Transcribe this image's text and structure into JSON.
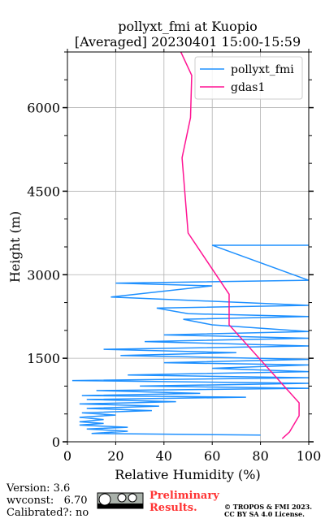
{
  "chart_data": {
    "type": "line",
    "title": "pollyxt_fmi at Kuopio",
    "subtitle": "[Averaged] 20230401 15:00-15:59",
    "x_label": "Relative Humidity (%)",
    "y_label": "Height (m)",
    "xlim": [
      0,
      100
    ],
    "xticks": [
      0,
      20,
      40,
      60,
      80,
      100
    ],
    "ylim": [
      0,
      7000
    ],
    "yticks": [
      0,
      1500,
      3000,
      4500,
      6000
    ],
    "yminorticks": [
      500,
      1000,
      2000,
      2500,
      3500,
      4000,
      5000,
      5500,
      6500,
      7000
    ],
    "grid": true,
    "legend": "upper right",
    "series": [
      {
        "name": "pollyxt_fmi",
        "color": "#1e90ff",
        "heights": [
          120,
          150,
          190,
          230,
          260,
          300,
          330,
          360,
          400,
          440,
          480,
          520,
          560,
          600,
          640,
          680,
          720,
          760,
          800,
          830,
          870,
          920,
          960,
          1000,
          1050,
          1100,
          1150,
          1200,
          1260,
          1320,
          1380,
          1420,
          1480,
          1550,
          1600,
          1660,
          1720,
          1800,
          1860,
          1920,
          1980,
          2100,
          2200,
          2250,
          2300,
          2400,
          2450,
          2600,
          2800,
          2850,
          2900,
          3530,
          3530
        ],
        "values": [
          80,
          10,
          25,
          8,
          25,
          5,
          15,
          5,
          15,
          5,
          20,
          6,
          35,
          8,
          38,
          5,
          45,
          8,
          74,
          6,
          55,
          12,
          100,
          30,
          100,
          2,
          100,
          25,
          100,
          60,
          100,
          40,
          100,
          22,
          70,
          15,
          100,
          32,
          100,
          40,
          100,
          60,
          48,
          100,
          50,
          37,
          100,
          18,
          60,
          20,
          100,
          60,
          100
        ]
      },
      {
        "name": "gdas1",
        "color": "#ff1493",
        "heights": [
          58,
          175,
          467,
          700,
          2100,
          2650,
          3750,
          5100,
          5820,
          6580,
          7000
        ],
        "values": [
          89,
          92,
          96,
          96,
          67,
          67,
          50,
          47.5,
          51,
          51.5,
          47
        ]
      }
    ]
  },
  "footer": {
    "version": "Version: 3.6",
    "wvconst": "wvconst:   6.70",
    "calibrated": "Calibrated?: no",
    "notice": "Preliminary Results.",
    "copyright": "© TROPOS & FMI 2023.",
    "license": "CC BY SA 4.0 License."
  }
}
